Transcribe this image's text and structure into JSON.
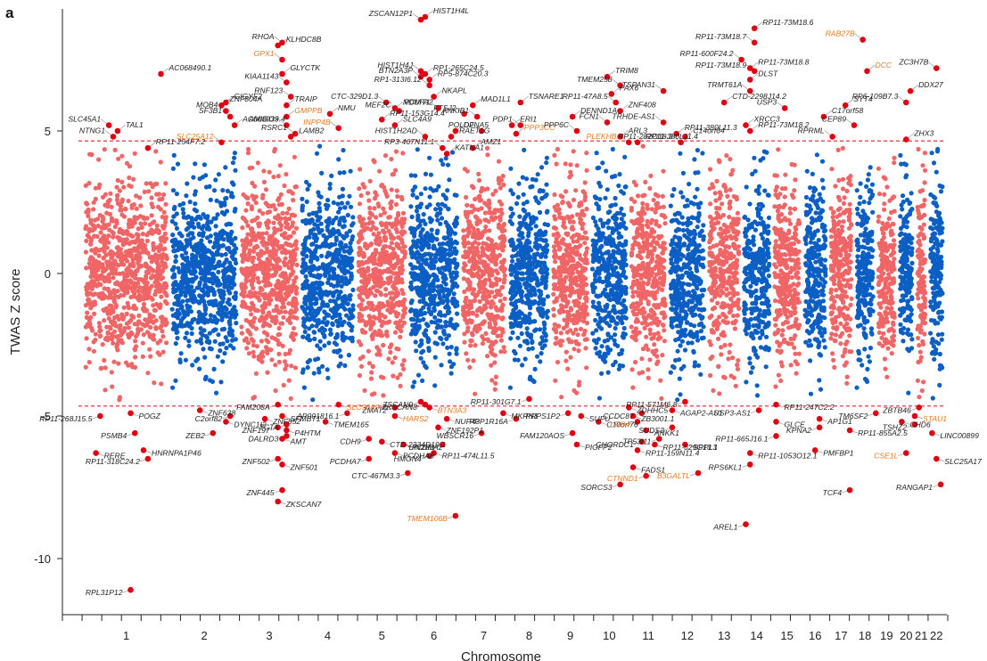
{
  "panel_label": "a",
  "colors": {
    "odd_chrom": "#f06565",
    "even_chrom": "#0b5fc4",
    "significant": "#e00010",
    "threshold_line": "#e8202a",
    "highlight_label": "#e8781e",
    "label": "#222222",
    "leader": "#9a9a9a"
  },
  "chart_data": {
    "type": "scatter",
    "subtype": "manhattan",
    "xlabel": "Chromosome",
    "ylabel": "TWAS Z score",
    "ylim": [
      -12,
      9
    ],
    "yticks": [
      -10,
      -5,
      0,
      5
    ],
    "significance_threshold": [
      4.65,
      -4.65
    ],
    "chromosomes": [
      "1",
      "2",
      "3",
      "4",
      "5",
      "6",
      "7",
      "8",
      "9",
      "10",
      "11",
      "12",
      "13",
      "14",
      "15",
      "16",
      "17",
      "18",
      "19",
      "20",
      "21",
      "22"
    ],
    "chromosome_spans": [
      [
        0,
        20
      ],
      [
        20,
        36
      ],
      [
        36,
        50
      ],
      [
        50,
        63
      ],
      [
        63,
        75
      ],
      [
        75,
        87
      ],
      [
        87,
        98
      ],
      [
        98,
        108
      ],
      [
        108,
        117
      ],
      [
        117,
        126
      ],
      [
        126,
        135
      ],
      [
        135,
        144
      ],
      [
        144,
        152
      ],
      [
        152,
        159
      ],
      [
        159,
        166
      ],
      [
        166,
        172
      ],
      [
        172,
        178
      ],
      [
        178,
        183
      ],
      [
        183,
        188
      ],
      [
        188,
        192
      ],
      [
        192,
        195
      ],
      [
        195,
        199
      ]
    ],
    "chromosome_hits": [
      [
        "SLC45A1",
        5.2,
        6
      ],
      [
        "TAL1",
        5.0,
        8
      ],
      [
        "NTNG1",
        4.8,
        7
      ],
      [
        "RP11-254F7.2",
        4.4,
        15
      ],
      [
        "RP11-268J15.5",
        -5.0,
        4
      ],
      [
        "RERE",
        -6.3,
        3
      ],
      [
        "RPL31P12",
        -11.1,
        11
      ],
      [
        "POGZ",
        -4.9,
        11
      ],
      [
        "PSMB4",
        -5.6,
        12
      ],
      [
        "HNRNPA1P46",
        -6.2,
        14
      ],
      [
        "RP11-318C24.2",
        -6.5,
        15
      ],
      [
        "AC068490.1",
        7.0,
        18
      ],
      [
        "SLC25A12",
        4.6,
        32
      ],
      [
        "ZNF638",
        -4.8,
        27
      ],
      [
        "ZEB2",
        -5.6,
        30
      ],
      [
        "DYNC1I2",
        -5.2,
        33
      ],
      [
        "C2orf82",
        -5.0,
        34
      ],
      [
        "GIGYF2",
        6.0,
        33
      ],
      [
        "SF3B1",
        5.5,
        34
      ],
      [
        "AC068039.4",
        5.2,
        35
      ],
      [
        "MOB4",
        5.7,
        33
      ],
      [
        "ZNF804A",
        5.9,
        32
      ],
      [
        "RHOA",
        8.1,
        46
      ],
      [
        "KLHDC8B",
        8.0,
        45
      ],
      [
        "GPX1",
        7.5,
        46
      ],
      [
        "GLYCTK",
        7.0,
        46
      ],
      [
        "KIAA1143",
        6.7,
        47
      ],
      [
        "TRAIP",
        5.9,
        47
      ],
      [
        "RNF123",
        6.2,
        48
      ],
      [
        "GMPPB",
        5.5,
        47
      ],
      [
        "AMIGO3",
        5.2,
        47
      ],
      [
        "LAMB2",
        4.8,
        48
      ],
      [
        "RSRC1",
        4.9,
        49
      ],
      [
        "ZNF852",
        -5.1,
        42
      ],
      [
        "ZNF197",
        -5.4,
        45
      ],
      [
        "AMT",
        -5.8,
        46
      ],
      [
        "ZNF502",
        -6.5,
        45
      ],
      [
        "ZNF501",
        -6.7,
        46
      ],
      [
        "ZNF445",
        -7.6,
        46
      ],
      [
        "ZKSCAN7",
        -8.0,
        45
      ],
      [
        "FAM208A",
        -4.6,
        45
      ],
      [
        "SFMBT1",
        -5.0,
        46
      ],
      [
        "TCTA",
        -5.3,
        47
      ],
      [
        "P4HTM",
        -5.5,
        47
      ],
      [
        "DALRD3",
        -5.7,
        47
      ],
      [
        "NMU",
        5.6,
        57
      ],
      [
        "INPP4B",
        5.1,
        59
      ],
      [
        "SLC30A9",
        -4.6,
        59
      ],
      [
        "AP001816.1",
        -4.9,
        61
      ],
      [
        "TMEM165",
        -5.2,
        56
      ],
      [
        "CDH9",
        -5.8,
        66
      ],
      [
        "RP11-153G14.4",
        5.4,
        69
      ],
      [
        "CTC-329D1.3",
        6.0,
        70
      ],
      [
        "NDUFA2",
        5.8,
        72
      ],
      [
        "MEF2C",
        5.7,
        73
      ],
      [
        "SLC4A9",
        5.2,
        72
      ],
      [
        "HIST1H2AD",
        4.8,
        79
      ],
      [
        "HARS2",
        -5.0,
        72
      ],
      [
        "ZMAT2",
        -4.7,
        72
      ],
      [
        "CTD-2334D19.1",
        -5.9,
        69
      ],
      [
        "PCDHA7",
        -6.5,
        66
      ],
      [
        "PCDHA8",
        -6.3,
        72
      ],
      [
        "CTC-467M3.3",
        -7.0,
        75
      ],
      [
        "PCDHA2",
        -6.0,
        74
      ],
      [
        "ZSCAN12P1",
        8.9,
        78
      ],
      [
        "HIST1H4L",
        9.0,
        79
      ],
      [
        "HIST1H4J",
        7.1,
        78
      ],
      [
        "RP1-265C24.5",
        7.0,
        79
      ],
      [
        "BTN2A3P",
        6.9,
        78
      ],
      [
        "RP5-874C20.3",
        6.8,
        80
      ],
      [
        "RP1-313I6.12",
        6.6,
        80
      ],
      [
        "NKAPL",
        6.2,
        81
      ],
      [
        "PCMT1",
        5.8,
        82
      ],
      [
        "DFNA5",
        5.0,
        86
      ],
      [
        "RP3-467N11.1",
        4.4,
        83
      ],
      [
        "KATNA1",
        4.2,
        84
      ],
      [
        "ZSCAN9",
        -4.5,
        78
      ],
      [
        "BTN3A3",
        -4.7,
        80
      ],
      [
        "ZKSCAN8",
        -4.6,
        79
      ],
      [
        "ZNF192P1",
        -5.4,
        82
      ],
      [
        "LIN28B",
        -6.0,
        83
      ],
      [
        "RP11-474L11.5",
        -6.3,
        81
      ],
      [
        "HMGN4",
        -6.4,
        80
      ],
      [
        "NUP43",
        -5.1,
        84
      ],
      [
        "TMEM106B",
        -8.5,
        86
      ],
      [
        "RAET1G",
        4.8,
        85
      ],
      [
        "FTSJ2",
        5.6,
        88
      ],
      [
        "MAD1L1",
        5.9,
        90
      ],
      [
        "ANKIB1",
        5.5,
        91
      ],
      [
        "ERI1",
        5.2,
        99
      ],
      [
        "POLD2",
        5.0,
        92
      ],
      [
        "AMZ1",
        4.4,
        90
      ],
      [
        "WBSCR16",
        -5.6,
        92
      ],
      [
        "TSNARE1",
        6.0,
        101
      ],
      [
        "PDP1",
        5.2,
        101
      ],
      [
        "PPP3CC",
        4.9,
        100
      ],
      [
        "RP11-301G7.1",
        -4.4,
        103
      ],
      [
        "MKRN1",
        -4.9,
        97
      ],
      [
        "PPP1R16A",
        -5.1,
        100
      ],
      [
        "DENND1A",
        5.5,
        113
      ],
      [
        "PPP6C",
        5.0,
        114
      ],
      [
        "SUFU",
        -5.0,
        115
      ],
      [
        "FAM120AOS",
        -5.6,
        113
      ],
      [
        "PIGFP2",
        -6.0,
        114
      ],
      [
        "PRPS1P2",
        -4.9,
        112
      ],
      [
        "C10orf76",
        -5.2,
        119
      ],
      [
        "SORCS3",
        -7.4,
        124
      ],
      [
        "TRIM8",
        6.9,
        121
      ],
      [
        "TMEM258",
        6.6,
        124
      ],
      [
        "PAX6",
        6.3,
        122
      ],
      [
        "RP11-47A8.5",
        6.0,
        123
      ],
      [
        "ZNF408",
        5.7,
        124
      ],
      [
        "FCN1",
        5.3,
        121
      ],
      [
        "ARL3",
        4.8,
        124
      ],
      [
        "PLEKHB1",
        4.6,
        126
      ],
      [
        "RP11-380L11.4",
        4.6,
        128
      ],
      [
        "TSPAN31",
        6.4,
        134
      ],
      [
        "ZDHHC5",
        -4.7,
        126
      ],
      [
        "CCDC87",
        -4.9,
        129
      ],
      [
        "ZB3001.1",
        -5.0,
        127
      ],
      [
        "LRP4",
        -5.2,
        128
      ],
      [
        "ANKK1",
        -5.5,
        130
      ],
      [
        "CHORDC1",
        -5.9,
        129
      ],
      [
        "RP11-159N11.4",
        -6.2,
        128
      ],
      [
        "CTNND1",
        -7.1,
        130
      ],
      [
        "FADS1",
        -6.8,
        127
      ],
      [
        "TRHDE-AS1",
        5.3,
        134
      ],
      [
        "RP11-380L11.3",
        4.9,
        137
      ],
      [
        "RP11-282O18.3",
        4.6,
        138
      ],
      [
        "C14orf64",
        4.8,
        139
      ],
      [
        "RP11-571M6.8",
        -4.5,
        139
      ],
      [
        "AGAP2-AS1",
        -4.8,
        136
      ],
      [
        "TP53I11",
        -5.8,
        133
      ],
      [
        "RP11-629G13.1",
        -6.0,
        132
      ],
      [
        "SUDS3",
        -5.4,
        136
      ],
      [
        "SPPL3",
        -6.0,
        139
      ],
      [
        "B3GALTL",
        -7.0,
        142
      ],
      [
        "CTD-2298J14.2",
        6.0,
        148
      ],
      [
        "RP11-600F24.2",
        7.5,
        152
      ],
      [
        "RP11-73M18.6",
        8.6,
        155
      ],
      [
        "RP11-73M18.7",
        8.1,
        155
      ],
      [
        "RP11-73M18.8",
        7.2,
        154
      ],
      [
        "RP11-73M18.9",
        7.1,
        155
      ],
      [
        "DLST",
        6.8,
        154
      ],
      [
        "TRMT61A",
        6.4,
        154
      ],
      [
        "XRCC3",
        5.2,
        153
      ],
      [
        "USP3",
        5.8,
        162
      ],
      [
        "RP11-73M18.2",
        5.0,
        154
      ],
      [
        "RPS6KL1",
        -6.7,
        154
      ],
      [
        "RP11-1053O12.1",
        -6.3,
        154
      ],
      [
        "USP3-AS1",
        -4.8,
        156
      ],
      [
        "GLCE",
        -5.2,
        160
      ],
      [
        "RP11-665J16.1",
        -5.7,
        160
      ],
      [
        "RP11-247C2.2",
        -4.6,
        160
      ],
      [
        "AREL1",
        -8.8,
        153
      ],
      [
        "C17orf58",
        5.5,
        171
      ],
      [
        "RPRML",
        4.8,
        173
      ],
      [
        "SYT4",
        5.9,
        176
      ],
      [
        "CEP89",
        5.2,
        178
      ],
      [
        "AP1G1",
        -5.1,
        170
      ],
      [
        "KPNA2",
        -5.4,
        170
      ],
      [
        "PMFBP1",
        -6.2,
        169
      ],
      [
        "TCF4",
        -7.6,
        177
      ],
      [
        "RP11-855A2.5",
        -5.5,
        177
      ],
      [
        "RAB27B",
        8.2,
        180
      ],
      [
        "DCC",
        7.1,
        181
      ],
      [
        "ZC3H7B",
        7.2,
        197
      ],
      [
        "DDX27",
        6.4,
        191
      ],
      [
        "RP6-109B7.3",
        6.0,
        190
      ],
      [
        "ZHX3",
        4.7,
        190
      ],
      [
        "TM6SF2",
        -4.9,
        183
      ],
      [
        "CHD6",
        -5.2,
        189
      ],
      [
        "ZBTB46",
        -4.7,
        193
      ],
      [
        "STAU1",
        -5.0,
        192
      ],
      [
        "TSHZ2",
        -5.3,
        192
      ],
      [
        "LINC00899",
        -5.6,
        196
      ],
      [
        "CSE1L",
        -6.3,
        190
      ],
      [
        "SLC25A17",
        -6.5,
        197
      ],
      [
        "RANGAP1",
        -7.4,
        198
      ]
    ],
    "highlighted": [
      "GPX1",
      "GMPPB",
      "INPP4B",
      "SLC25A12",
      "SLC30A9",
      "HARS2",
      "BTN3A3",
      "TMEM106B",
      "PPP3CC",
      "PLEKHB1",
      "LRP4",
      "CTNND1",
      "B3GALTL",
      "RAB27B",
      "DCC",
      "STAU1",
      "CSE1L"
    ]
  }
}
